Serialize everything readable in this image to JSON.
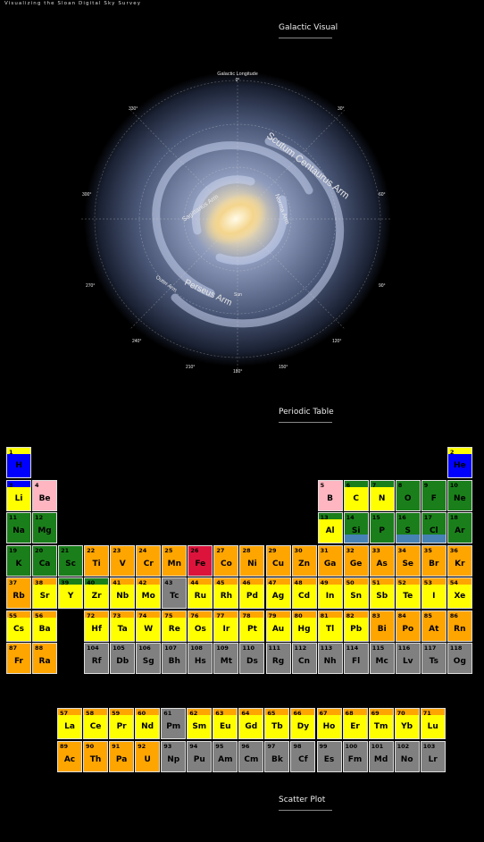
{
  "header": {
    "title": "Visualizing the Sloan Digital Sky Survey"
  },
  "sections": {
    "galactic": "Galactic Visual",
    "periodic": "Periodic Table",
    "scatter": "Scatter Plot"
  },
  "galaxy": {
    "labels": {
      "top": "Galactic Longitude",
      "top_deg": "0°",
      "scutum": "Scutum Centaurus Arm",
      "perseus": "Perseus Arm",
      "sagittarius": "Sagittarius Arm",
      "norma": "Norma Arm",
      "outer": "Outer Arm",
      "sun": "Sun",
      "d30": "30°",
      "d60": "60°",
      "d90": "90°",
      "d120": "120°",
      "d150": "150°",
      "d180": "180°",
      "d210": "210°",
      "d240": "240°",
      "d270": "270°",
      "d300": "300°",
      "d330": "330°"
    }
  },
  "colors": {
    "nonmetal": "#1a7f1a",
    "noble": "#0000ff",
    "alkali": "#ffb6c1",
    "metal": "#ffa500",
    "post": "#ffff00",
    "unknown": "#808080",
    "iron": "#dc143c",
    "highlight": "#4682b4"
  },
  "periodic_table": [
    {
      "n": "1",
      "s": "H",
      "c": "#0000ff",
      "r": 1,
      "g": 1,
      "band": "#ffff00"
    },
    {
      "n": "2",
      "s": "He",
      "c": "#0000ff",
      "r": 1,
      "g": 18,
      "band": "#ffff00"
    },
    {
      "n": "3",
      "s": "Li",
      "c": "#ffff00",
      "r": 2,
      "g": 1,
      "band": "#0000ff"
    },
    {
      "n": "4",
      "s": "Be",
      "c": "#ffb6c1",
      "r": 2,
      "g": 2
    },
    {
      "n": "5",
      "s": "B",
      "c": "#ffb6c1",
      "r": 2,
      "g": 13
    },
    {
      "n": "6",
      "s": "C",
      "c": "#ffff00",
      "r": 2,
      "g": 14,
      "band": "#1a7f1a"
    },
    {
      "n": "7",
      "s": "N",
      "c": "#ffff00",
      "r": 2,
      "g": 15,
      "band": "#1a7f1a"
    },
    {
      "n": "8",
      "s": "O",
      "c": "#1a7f1a",
      "r": 2,
      "g": 16
    },
    {
      "n": "9",
      "s": "F",
      "c": "#1a7f1a",
      "r": 2,
      "g": 17
    },
    {
      "n": "10",
      "s": "Ne",
      "c": "#1a7f1a",
      "r": 2,
      "g": 18
    },
    {
      "n": "11",
      "s": "Na",
      "c": "#1a7f1a",
      "r": 3,
      "g": 1
    },
    {
      "n": "12",
      "s": "Mg",
      "c": "#1a7f1a",
      "r": 3,
      "g": 2
    },
    {
      "n": "13",
      "s": "Al",
      "c": "#ffff00",
      "r": 3,
      "g": 13,
      "band": "#1a7f1a"
    },
    {
      "n": "14",
      "s": "Si",
      "c": "#1a7f1a",
      "r": 3,
      "g": 14,
      "bottom": "#4682b4"
    },
    {
      "n": "15",
      "s": "P",
      "c": "#1a7f1a",
      "r": 3,
      "g": 15
    },
    {
      "n": "16",
      "s": "S",
      "c": "#1a7f1a",
      "r": 3,
      "g": 16,
      "bottom": "#4682b4"
    },
    {
      "n": "17",
      "s": "Cl",
      "c": "#1a7f1a",
      "r": 3,
      "g": 17,
      "bottom": "#4682b4"
    },
    {
      "n": "18",
      "s": "Ar",
      "c": "#1a7f1a",
      "r": 3,
      "g": 18
    },
    {
      "n": "19",
      "s": "K",
      "c": "#1a7f1a",
      "r": 4,
      "g": 1
    },
    {
      "n": "20",
      "s": "Ca",
      "c": "#1a7f1a",
      "r": 4,
      "g": 2
    },
    {
      "n": "21",
      "s": "Sc",
      "c": "#1a7f1a",
      "r": 4,
      "g": 3
    },
    {
      "n": "22",
      "s": "Ti",
      "c": "#ffa500",
      "r": 4,
      "g": 4
    },
    {
      "n": "23",
      "s": "V",
      "c": "#ffa500",
      "r": 4,
      "g": 5
    },
    {
      "n": "24",
      "s": "Cr",
      "c": "#ffa500",
      "r": 4,
      "g": 6
    },
    {
      "n": "25",
      "s": "Mn",
      "c": "#ffa500",
      "r": 4,
      "g": 7
    },
    {
      "n": "26",
      "s": "Fe",
      "c": "#dc143c",
      "r": 4,
      "g": 8
    },
    {
      "n": "27",
      "s": "Co",
      "c": "#ffa500",
      "r": 4,
      "g": 9
    },
    {
      "n": "28",
      "s": "Ni",
      "c": "#ffa500",
      "r": 4,
      "g": 10
    },
    {
      "n": "29",
      "s": "Cu",
      "c": "#ffa500",
      "r": 4,
      "g": 11
    },
    {
      "n": "30",
      "s": "Zn",
      "c": "#ffa500",
      "r": 4,
      "g": 12
    },
    {
      "n": "31",
      "s": "Ga",
      "c": "#ffa500",
      "r": 4,
      "g": 13
    },
    {
      "n": "32",
      "s": "Ge",
      "c": "#ffa500",
      "r": 4,
      "g": 14
    },
    {
      "n": "33",
      "s": "As",
      "c": "#ffa500",
      "r": 4,
      "g": 15
    },
    {
      "n": "34",
      "s": "Se",
      "c": "#ffa500",
      "r": 4,
      "g": 16
    },
    {
      "n": "35",
      "s": "Br",
      "c": "#ffa500",
      "r": 4,
      "g": 17
    },
    {
      "n": "36",
      "s": "Kr",
      "c": "#ffa500",
      "r": 4,
      "g": 18
    },
    {
      "n": "37",
      "s": "Rb",
      "c": "#ffa500",
      "r": 5,
      "g": 1
    },
    {
      "n": "38",
      "s": "Sr",
      "c": "#ffff00",
      "r": 5,
      "g": 2,
      "band": "#ffa500"
    },
    {
      "n": "39",
      "s": "Y",
      "c": "#ffff00",
      "r": 5,
      "g": 3,
      "band": "#1a7f1a"
    },
    {
      "n": "40",
      "s": "Zr",
      "c": "#ffff00",
      "r": 5,
      "g": 4,
      "band": "#1a7f1a"
    },
    {
      "n": "41",
      "s": "Nb",
      "c": "#ffff00",
      "r": 5,
      "g": 5,
      "band": "#ffa500"
    },
    {
      "n": "42",
      "s": "Mo",
      "c": "#ffff00",
      "r": 5,
      "g": 6,
      "band": "#ffa500"
    },
    {
      "n": "43",
      "s": "Tc",
      "c": "#808080",
      "r": 5,
      "g": 7
    },
    {
      "n": "44",
      "s": "Ru",
      "c": "#ffff00",
      "r": 5,
      "g": 8,
      "band": "#ffa500"
    },
    {
      "n": "45",
      "s": "Rh",
      "c": "#ffff00",
      "r": 5,
      "g": 9,
      "band": "#ffa500"
    },
    {
      "n": "46",
      "s": "Pd",
      "c": "#ffff00",
      "r": 5,
      "g": 10,
      "band": "#ffa500"
    },
    {
      "n": "47",
      "s": "Ag",
      "c": "#ffff00",
      "r": 5,
      "g": 11,
      "band": "#ffa500"
    },
    {
      "n": "48",
      "s": "Cd",
      "c": "#ffff00",
      "r": 5,
      "g": 12,
      "band": "#ffa500"
    },
    {
      "n": "49",
      "s": "In",
      "c": "#ffff00",
      "r": 5,
      "g": 13,
      "band": "#ffa500"
    },
    {
      "n": "50",
      "s": "Sn",
      "c": "#ffff00",
      "r": 5,
      "g": 14,
      "band": "#ffa500"
    },
    {
      "n": "51",
      "s": "Sb",
      "c": "#ffff00",
      "r": 5,
      "g": 15,
      "band": "#ffa500"
    },
    {
      "n": "52",
      "s": "Te",
      "c": "#ffff00",
      "r": 5,
      "g": 16,
      "band": "#ffa500"
    },
    {
      "n": "53",
      "s": "I",
      "c": "#ffff00",
      "r": 5,
      "g": 17,
      "band": "#ffa500"
    },
    {
      "n": "54",
      "s": "Xe",
      "c": "#ffff00",
      "r": 5,
      "g": 18,
      "band": "#ffa500"
    },
    {
      "n": "55",
      "s": "Cs",
      "c": "#ffff00",
      "r": 6,
      "g": 1,
      "band": "#ffa500"
    },
    {
      "n": "56",
      "s": "Ba",
      "c": "#ffff00",
      "r": 6,
      "g": 2,
      "band": "#ffa500"
    },
    {
      "n": "72",
      "s": "Hf",
      "c": "#ffff00",
      "r": 6,
      "g": 4,
      "band": "#ffa500"
    },
    {
      "n": "73",
      "s": "Ta",
      "c": "#ffff00",
      "r": 6,
      "g": 5,
      "band": "#ffa500"
    },
    {
      "n": "74",
      "s": "W",
      "c": "#ffff00",
      "r": 6,
      "g": 6,
      "band": "#ffa500"
    },
    {
      "n": "75",
      "s": "Re",
      "c": "#ffff00",
      "r": 6,
      "g": 7,
      "band": "#ffa500"
    },
    {
      "n": "76",
      "s": "Os",
      "c": "#ffff00",
      "r": 6,
      "g": 8,
      "band": "#ffa500"
    },
    {
      "n": "77",
      "s": "Ir",
      "c": "#ffff00",
      "r": 6,
      "g": 9,
      "band": "#ffa500"
    },
    {
      "n": "78",
      "s": "Pt",
      "c": "#ffff00",
      "r": 6,
      "g": 10,
      "band": "#ffa500"
    },
    {
      "n": "79",
      "s": "Au",
      "c": "#ffff00",
      "r": 6,
      "g": 11,
      "band": "#ffa500"
    },
    {
      "n": "80",
      "s": "Hg",
      "c": "#ffff00",
      "r": 6,
      "g": 12,
      "band": "#ffa500"
    },
    {
      "n": "81",
      "s": "Tl",
      "c": "#ffff00",
      "r": 6,
      "g": 13,
      "band": "#ffa500"
    },
    {
      "n": "82",
      "s": "Pb",
      "c": "#ffff00",
      "r": 6,
      "g": 14,
      "band": "#ffa500"
    },
    {
      "n": "83",
      "s": "Bi",
      "c": "#ffa500",
      "r": 6,
      "g": 15
    },
    {
      "n": "84",
      "s": "Po",
      "c": "#ffa500",
      "r": 6,
      "g": 16
    },
    {
      "n": "85",
      "s": "At",
      "c": "#ffa500",
      "r": 6,
      "g": 17
    },
    {
      "n": "86",
      "s": "Rn",
      "c": "#ffa500",
      "r": 6,
      "g": 18
    },
    {
      "n": "87",
      "s": "Fr",
      "c": "#ffa500",
      "r": 7,
      "g": 1
    },
    {
      "n": "88",
      "s": "Ra",
      "c": "#ffa500",
      "r": 7,
      "g": 2
    },
    {
      "n": "104",
      "s": "Rf",
      "c": "#808080",
      "r": 7,
      "g": 4
    },
    {
      "n": "105",
      "s": "Db",
      "c": "#808080",
      "r": 7,
      "g": 5
    },
    {
      "n": "106",
      "s": "Sg",
      "c": "#808080",
      "r": 7,
      "g": 6
    },
    {
      "n": "107",
      "s": "Bh",
      "c": "#808080",
      "r": 7,
      "g": 7
    },
    {
      "n": "108",
      "s": "Hs",
      "c": "#808080",
      "r": 7,
      "g": 8
    },
    {
      "n": "109",
      "s": "Mt",
      "c": "#808080",
      "r": 7,
      "g": 9
    },
    {
      "n": "110",
      "s": "Ds",
      "c": "#808080",
      "r": 7,
      "g": 10
    },
    {
      "n": "111",
      "s": "Rg",
      "c": "#808080",
      "r": 7,
      "g": 11
    },
    {
      "n": "112",
      "s": "Cn",
      "c": "#808080",
      "r": 7,
      "g": 12
    },
    {
      "n": "113",
      "s": "Nh",
      "c": "#808080",
      "r": 7,
      "g": 13
    },
    {
      "n": "114",
      "s": "Fl",
      "c": "#808080",
      "r": 7,
      "g": 14
    },
    {
      "n": "115",
      "s": "Mc",
      "c": "#808080",
      "r": 7,
      "g": 15
    },
    {
      "n": "116",
      "s": "Lv",
      "c": "#808080",
      "r": 7,
      "g": 16
    },
    {
      "n": "117",
      "s": "Ts",
      "c": "#808080",
      "r": 7,
      "g": 17
    },
    {
      "n": "118",
      "s": "Og",
      "c": "#808080",
      "r": 7,
      "g": 18
    },
    {
      "n": "57",
      "s": "La",
      "c": "#ffff00",
      "r": 9,
      "g": 3,
      "band": "#ffa500"
    },
    {
      "n": "58",
      "s": "Ce",
      "c": "#ffff00",
      "r": 9,
      "g": 4,
      "band": "#ffa500"
    },
    {
      "n": "59",
      "s": "Pr",
      "c": "#ffff00",
      "r": 9,
      "g": 5,
      "band": "#ffa500"
    },
    {
      "n": "60",
      "s": "Nd",
      "c": "#ffff00",
      "r": 9,
      "g": 6,
      "band": "#ffa500"
    },
    {
      "n": "61",
      "s": "Pm",
      "c": "#808080",
      "r": 9,
      "g": 7
    },
    {
      "n": "62",
      "s": "Sm",
      "c": "#ffff00",
      "r": 9,
      "g": 8,
      "band": "#ffa500"
    },
    {
      "n": "63",
      "s": "Eu",
      "c": "#ffff00",
      "r": 9,
      "g": 9,
      "band": "#ffa500"
    },
    {
      "n": "64",
      "s": "Gd",
      "c": "#ffff00",
      "r": 9,
      "g": 10,
      "band": "#ffa500"
    },
    {
      "n": "65",
      "s": "Tb",
      "c": "#ffff00",
      "r": 9,
      "g": 11,
      "band": "#ffa500"
    },
    {
      "n": "66",
      "s": "Dy",
      "c": "#ffff00",
      "r": 9,
      "g": 12,
      "band": "#ffa500"
    },
    {
      "n": "67",
      "s": "Ho",
      "c": "#ffff00",
      "r": 9,
      "g": 13,
      "band": "#ffa500"
    },
    {
      "n": "68",
      "s": "Er",
      "c": "#ffff00",
      "r": 9,
      "g": 14,
      "band": "#ffa500"
    },
    {
      "n": "69",
      "s": "Tm",
      "c": "#ffff00",
      "r": 9,
      "g": 15,
      "band": "#ffa500"
    },
    {
      "n": "70",
      "s": "Yb",
      "c": "#ffff00",
      "r": 9,
      "g": 16,
      "band": "#ffa500"
    },
    {
      "n": "71",
      "s": "Lu",
      "c": "#ffff00",
      "r": 9,
      "g": 17,
      "band": "#ffa500"
    },
    {
      "n": "89",
      "s": "Ac",
      "c": "#ffa500",
      "r": 10,
      "g": 3
    },
    {
      "n": "90",
      "s": "Th",
      "c": "#ffa500",
      "r": 10,
      "g": 4
    },
    {
      "n": "91",
      "s": "Pa",
      "c": "#ffa500",
      "r": 10,
      "g": 5
    },
    {
      "n": "92",
      "s": "U",
      "c": "#ffa500",
      "r": 10,
      "g": 6
    },
    {
      "n": "93",
      "s": "Np",
      "c": "#808080",
      "r": 10,
      "g": 7
    },
    {
      "n": "94",
      "s": "Pu",
      "c": "#808080",
      "r": 10,
      "g": 8
    },
    {
      "n": "95",
      "s": "Am",
      "c": "#808080",
      "r": 10,
      "g": 9
    },
    {
      "n": "96",
      "s": "Cm",
      "c": "#808080",
      "r": 10,
      "g": 10
    },
    {
      "n": "97",
      "s": "Bk",
      "c": "#808080",
      "r": 10,
      "g": 11
    },
    {
      "n": "98",
      "s": "Cf",
      "c": "#808080",
      "r": 10,
      "g": 12
    },
    {
      "n": "99",
      "s": "Es",
      "c": "#808080",
      "r": 10,
      "g": 13
    },
    {
      "n": "100",
      "s": "Fm",
      "c": "#808080",
      "r": 10,
      "g": 14
    },
    {
      "n": "101",
      "s": "Md",
      "c": "#808080",
      "r": 10,
      "g": 15
    },
    {
      "n": "102",
      "s": "No",
      "c": "#808080",
      "r": 10,
      "g": 16
    },
    {
      "n": "103",
      "s": "Lr",
      "c": "#808080",
      "r": 10,
      "g": 17
    }
  ]
}
